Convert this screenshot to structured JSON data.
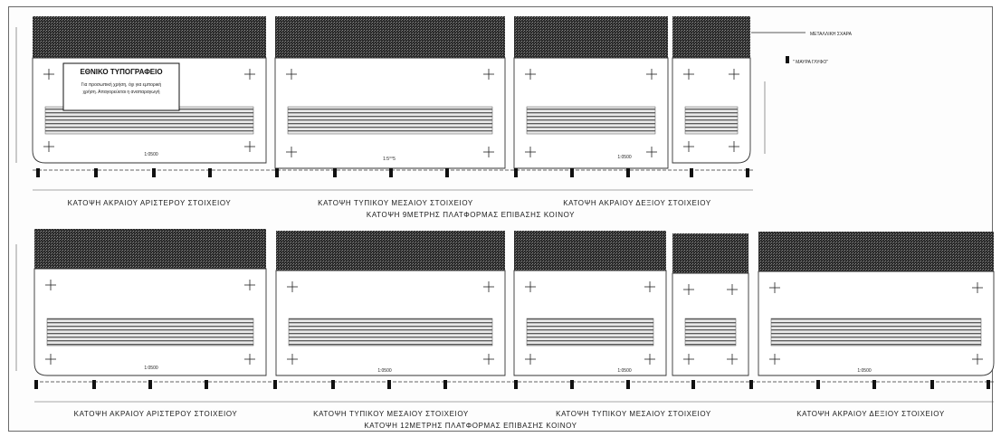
{
  "title_block": {
    "heading": "ΕΘΝΙΚΟ ΤΥΠΟΓΡΑΦΕΙΟ",
    "line1": "Για προσωπική χρήση, όχι για εμπορική",
    "line2": "χρήση. Απαγορεύεται η αναπαραγωγή"
  },
  "annotations": {
    "metal_plate": "ΜΕΤΑΛΛΙΚΗ ΣΧΑΡΑ",
    "rail_tie": "\" ΜΑΥΡΑ ΓΛΥΦΟ\""
  },
  "top": {
    "labels": [
      "ΚΑΤΟΨΗ ΑΚΡΑΙΟΥ ΑΡΙΣΤΕΡΟΥ ΣΤΟΙΧΕΙΟΥ",
      "ΚΑΤΟΨΗ ΤΥΠΙΚΟΥ ΜΕΣΑΙΟΥ ΣΤΟΙΧΕΙΟΥ",
      "ΚΑΤΟΨΗ ΑΚΡΑΙΟΥ ΔΕΞΙΟΥ ΣΤΟΙΧΕΙΟΥ"
    ],
    "caption": "ΚΑΤΟΨΗ 9ΜΕΤΡΗΣ ΠΛΑΤΦΟΡΜΑΣ ΕΠΙΒΑΣΗΣ ΚΟΙΝΟΥ",
    "dims": [
      "1:0500",
      "1:5°°5",
      "1:0500"
    ]
  },
  "bottom": {
    "labels": [
      "ΚΑΤΟΨΗ ΑΚΡΑΙΟΥ ΑΡΙΣΤΕΡΟΥ ΣΤΟΙΧΕΙΟΥ",
      "ΚΑΤΟΨΗ ΤΥΠΙΚΟΥ ΜΕΣΑΙΟΥ ΣΤΟΙΧΕΙΟΥ",
      "ΚΑΤΟΨΗ ΤΥΠΙΚΟΥ ΜΕΣΑΙΟΥ ΣΤΟΙΧΕΙΟΥ",
      "ΚΑΤΟΨΗ ΑΚΡΑΙΟΥ ΔΕΞΙΟΥ ΣΤΟΙΧΕΙΟΥ"
    ],
    "caption": "ΚΑΤΟΨΗ 12ΜΕΤΡΗΣ ΠΛΑΤΦΟΡΜΑΣ ΕΠΙΒΑΣΗΣ ΚΟΙΝΟΥ",
    "dims": [
      "1:0500",
      "1:0500",
      "1:0500",
      "1:0500"
    ]
  }
}
